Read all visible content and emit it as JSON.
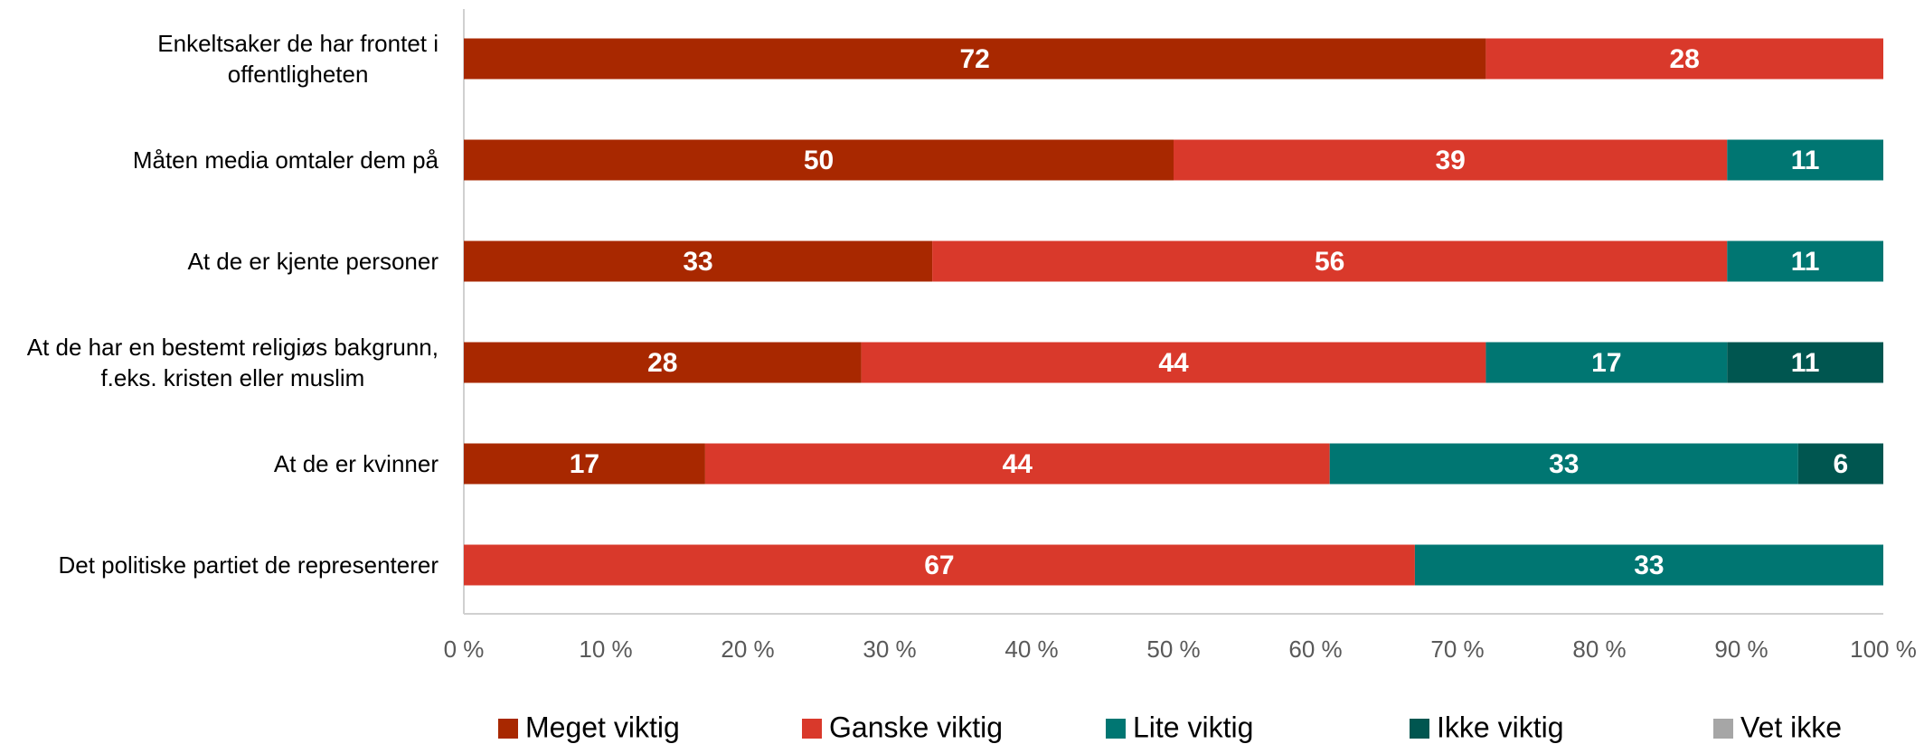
{
  "chart_data": {
    "type": "stacked-bar-horizontal",
    "categories": [
      "Enkeltsaker de har frontet i\noffentligheten",
      "Måten media omtaler dem på",
      "At de er kjente personer",
      "At de har en bestemt religiøs bakgrunn,\nf.eks. kristen eller muslim",
      "At de er kvinner",
      "Det politiske partiet de representerer"
    ],
    "series": [
      {
        "name": "Meget viktig",
        "color": "#A82800",
        "values": [
          72,
          50,
          33,
          28,
          17,
          null
        ]
      },
      {
        "name": "Ganske viktig",
        "color": "#D9392B",
        "values": [
          28,
          39,
          56,
          44,
          44,
          67
        ]
      },
      {
        "name": "Lite viktig",
        "color": "#007672",
        "values": [
          null,
          11,
          11,
          17,
          33,
          33
        ]
      },
      {
        "name": "Ikke viktig",
        "color": "#005650",
        "values": [
          null,
          null,
          null,
          11,
          6,
          null
        ]
      },
      {
        "name": "Vet ikke",
        "color": "#A6A6A6",
        "values": [
          null,
          null,
          null,
          null,
          null,
          null
        ]
      }
    ],
    "xlim": [
      0,
      100
    ],
    "xticks": [
      {
        "value": 0,
        "label": "0 %"
      },
      {
        "value": 10,
        "label": "10 %"
      },
      {
        "value": 20,
        "label": "20 %"
      },
      {
        "value": 30,
        "label": "30 %"
      },
      {
        "value": 40,
        "label": "40 %"
      },
      {
        "value": 50,
        "label": "50 %"
      },
      {
        "value": 60,
        "label": "60 %"
      },
      {
        "value": 70,
        "label": "70 %"
      },
      {
        "value": 80,
        "label": "80 %"
      },
      {
        "value": 90,
        "label": "90 %"
      },
      {
        "value": 100,
        "label": "100 %"
      }
    ],
    "legend": "bottom"
  }
}
